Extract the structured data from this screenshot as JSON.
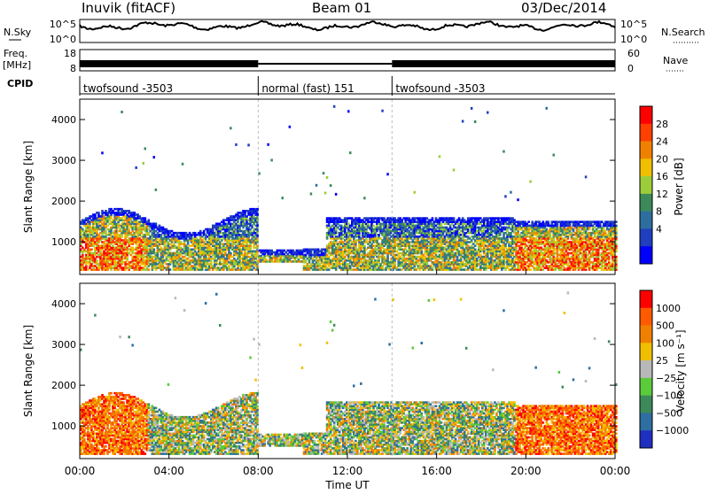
{
  "header": {
    "station": "Inuvik (fitACF)",
    "beam": "Beam 01",
    "date": "03/Dec/2014"
  },
  "top_panels": {
    "nsky_label": "N.Sky",
    "nsky_ticks": [
      "10^5",
      "10^0"
    ],
    "nsearch_label": "N.Search",
    "freq_label": "Freq.",
    "freq_unit": "[MHz]",
    "freq_ticks": [
      "18",
      "8"
    ],
    "nave_label": "Nave",
    "nave_ticks": [
      "60",
      "0"
    ],
    "cpid_label": "CPID",
    "cpid_segments": [
      {
        "label": "twofsound -3503",
        "start_hour": 0,
        "end_hour": 8
      },
      {
        "label": "normal (fast) 151",
        "start_hour": 8,
        "end_hour": 14
      },
      {
        "label": "twofsound -3503",
        "start_hour": 14,
        "end_hour": 24
      }
    ]
  },
  "colors": {
    "power": [
      "#0000ff",
      "#1f3fbf",
      "#2e6e9e",
      "#3c8a5a",
      "#9dcc3a",
      "#f0c000",
      "#f08000",
      "#ff4000",
      "#ff0000"
    ],
    "velocity": [
      "#1f2fbf",
      "#2e6ea0",
      "#3c8a5a",
      "#5acb3a",
      "#b8b8b8",
      "#f0c000",
      "#f08000",
      "#ff5a00",
      "#ff0000"
    ]
  },
  "chart_data": [
    {
      "type": "heatmap",
      "name": "power",
      "ylabel": "Slant Range [km]",
      "yticks": [
        1000,
        2000,
        3000,
        4000
      ],
      "ylim": [
        200,
        4500
      ],
      "colorbar_label": "Power [dB]",
      "colorbar_ticks": [
        "28",
        "24",
        "20",
        "16",
        "12",
        "8",
        "4"
      ]
    },
    {
      "type": "heatmap",
      "name": "velocity",
      "ylabel": "Slant Range [km]",
      "yticks": [
        1000,
        2000,
        3000,
        4000
      ],
      "ylim": [
        200,
        4500
      ],
      "colorbar_label": "Velocity [m s⁻¹]",
      "colorbar_ticks": [
        "1000",
        "500",
        "100",
        "25",
        "−25",
        "−100",
        "−500",
        "−1000"
      ]
    }
  ],
  "xaxis": {
    "label": "Time UT",
    "ticks": [
      "00:00",
      "04:00",
      "08:00",
      "12:00",
      "16:00",
      "20:00",
      "00:00"
    ],
    "xlim": [
      0,
      24
    ]
  }
}
